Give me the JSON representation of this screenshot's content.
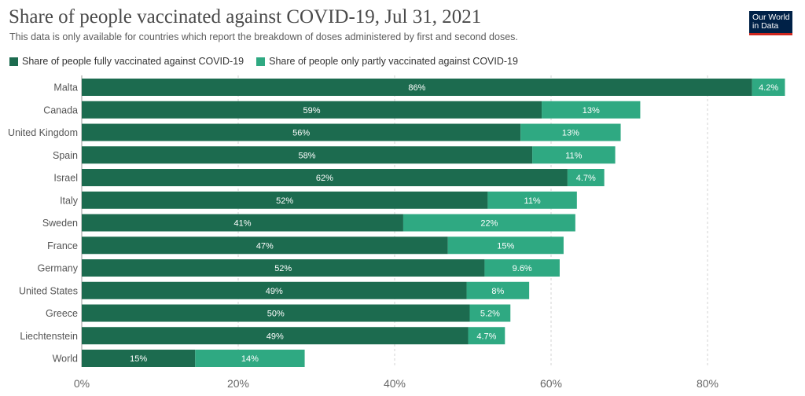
{
  "header": {
    "title": "Share of people vaccinated against COVID-19, Jul 31, 2021",
    "subtitle": "This data is only available for countries which report the breakdown of doses administered by first and second doses.",
    "logo_line1": "Our World",
    "logo_line2": "in Data"
  },
  "legend": {
    "position": "top-left",
    "items": [
      {
        "label": "Share of people fully vaccinated against COVID-19",
        "color": "#1c6b4f"
      },
      {
        "label": "Share of people only partly vaccinated against COVID-19",
        "color": "#2fa982"
      }
    ]
  },
  "chart_data": {
    "type": "bar",
    "orientation": "horizontal",
    "stacked": true,
    "title": "Share of people vaccinated against COVID-19, Jul 31, 2021",
    "categories": [
      "Malta",
      "Canada",
      "United Kingdom",
      "Spain",
      "Israel",
      "Italy",
      "Sweden",
      "France",
      "Germany",
      "United States",
      "Greece",
      "Liechtenstein",
      "World"
    ],
    "series": [
      {
        "name": "Share of people fully vaccinated against COVID-19",
        "color": "#1c6b4f",
        "values": [
          85.7,
          58.8,
          56.1,
          57.6,
          62.1,
          51.9,
          41.1,
          46.8,
          51.5,
          49.2,
          49.6,
          49.4,
          14.5
        ],
        "labels": [
          "86%",
          "59%",
          "56%",
          "58%",
          "62%",
          "52%",
          "41%",
          "47%",
          "52%",
          "49%",
          "50%",
          "49%",
          "15%"
        ]
      },
      {
        "name": "Share of people only partly vaccinated against COVID-19",
        "color": "#2fa982",
        "values": [
          4.2,
          12.6,
          12.8,
          10.6,
          4.7,
          11.4,
          22.0,
          14.8,
          9.6,
          8.0,
          5.2,
          4.7,
          14.0
        ],
        "labels": [
          "4.2%",
          "13%",
          "13%",
          "11%",
          "4.7%",
          "11%",
          "22%",
          "15%",
          "9.6%",
          "8%",
          "5.2%",
          "4.7%",
          "14%"
        ]
      }
    ],
    "xlim": [
      0,
      90
    ],
    "xticks": [
      0,
      20,
      40,
      60,
      80
    ],
    "xtick_labels": [
      "0%",
      "20%",
      "40%",
      "60%",
      "80%"
    ],
    "grid": true
  }
}
